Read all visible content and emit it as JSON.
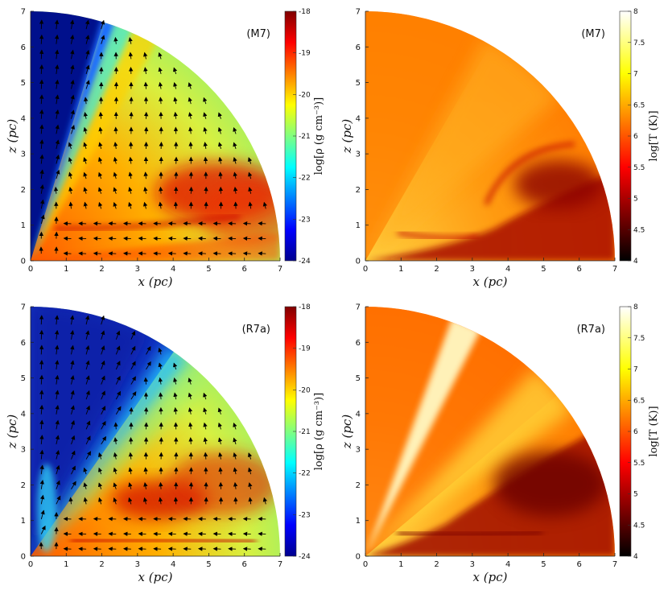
{
  "chart_data": [
    {
      "type": "heatmap",
      "panel": "density",
      "model_label": "(M7)",
      "xlabel": "x (pc)",
      "ylabel": "z (pc)",
      "xlim": [
        0,
        7
      ],
      "ylim": [
        0,
        7
      ],
      "x_ticks": [
        "0",
        "1",
        "2",
        "3",
        "4",
        "5",
        "6",
        "7"
      ],
      "y_ticks": [
        "0",
        "1",
        "2",
        "3",
        "4",
        "5",
        "6",
        "7"
      ],
      "colorbar": {
        "label": "log[ρ (g cm⁻³)]",
        "range": [
          -24,
          -18
        ],
        "ticks": [
          "-18",
          "-19",
          "-20",
          "-21",
          "-22",
          "-23",
          "-24"
        ],
        "colormap": "jet"
      },
      "velocity_vectors": true
    },
    {
      "type": "heatmap",
      "panel": "temperature",
      "model_label": "(M7)",
      "xlabel": "x (pc)",
      "ylabel": "z (pc)",
      "xlim": [
        0,
        7
      ],
      "ylim": [
        0,
        7
      ],
      "x_ticks": [
        "0",
        "1",
        "2",
        "3",
        "4",
        "5",
        "6",
        "7"
      ],
      "y_ticks": [
        "0",
        "1",
        "2",
        "3",
        "4",
        "5",
        "6",
        "7"
      ],
      "colorbar": {
        "label": "log[T (K)]",
        "range": [
          4,
          8
        ],
        "ticks": [
          "8",
          "7.5",
          "7",
          "6.5",
          "6",
          "5.5",
          "5",
          "4.5",
          "4"
        ],
        "colormap": "hot"
      },
      "velocity_vectors": false
    },
    {
      "type": "heatmap",
      "panel": "density",
      "model_label": "(R7a)",
      "xlabel": "x (pc)",
      "ylabel": "z (pc)",
      "xlim": [
        0,
        7
      ],
      "ylim": [
        0,
        7
      ],
      "x_ticks": [
        "0",
        "1",
        "2",
        "3",
        "4",
        "5",
        "6",
        "7"
      ],
      "y_ticks": [
        "0",
        "1",
        "2",
        "3",
        "4",
        "5",
        "6",
        "7"
      ],
      "colorbar": {
        "label": "log[ρ (g cm⁻³)]",
        "range": [
          -24,
          -18
        ],
        "ticks": [
          "-18",
          "-19",
          "-20",
          "-21",
          "-22",
          "-23",
          "-24"
        ],
        "colormap": "jet"
      },
      "velocity_vectors": true
    },
    {
      "type": "heatmap",
      "panel": "temperature",
      "model_label": "(R7a)",
      "xlabel": "x (pc)",
      "ylabel": "z (pc)",
      "xlim": [
        0,
        7
      ],
      "ylim": [
        0,
        7
      ],
      "x_ticks": [
        "0",
        "1",
        "2",
        "3",
        "4",
        "5",
        "6",
        "7"
      ],
      "y_ticks": [
        "0",
        "1",
        "2",
        "3",
        "4",
        "5",
        "6",
        "7"
      ],
      "colorbar": {
        "label": "log[T (K)]",
        "range": [
          4,
          8
        ],
        "ticks": [
          "8",
          "7.5",
          "7",
          "6.5",
          "6",
          "5.5",
          "5",
          "4.5",
          "4"
        ],
        "colormap": "hot"
      },
      "velocity_vectors": false
    }
  ]
}
